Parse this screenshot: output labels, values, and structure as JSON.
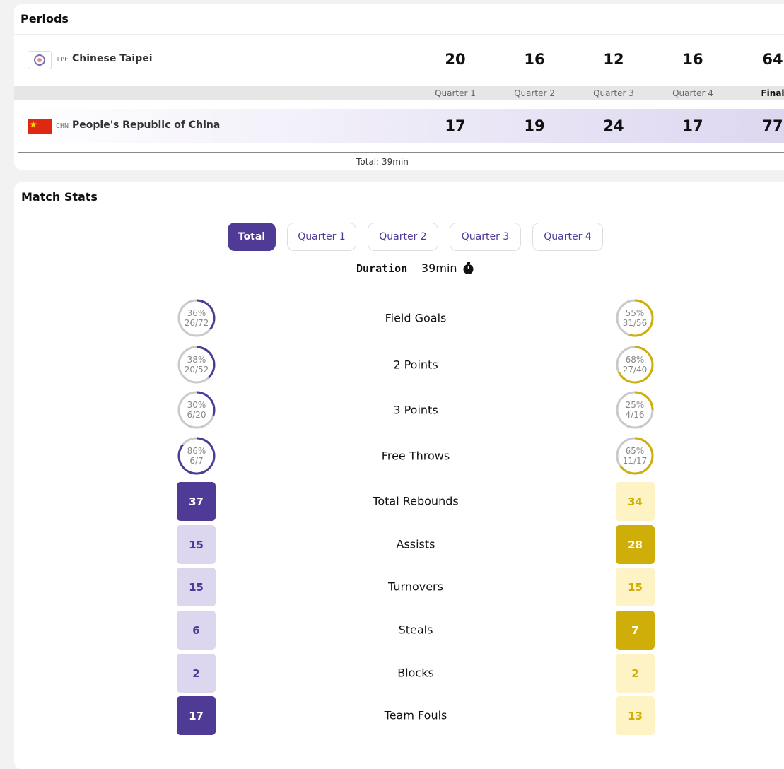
{
  "periods": {
    "title": "Periods",
    "teams": [
      {
        "code": "TPE",
        "name": "Chinese Taipei",
        "scores": [
          20,
          16,
          12,
          16,
          64
        ]
      },
      {
        "code": "CHN",
        "name": "People's Republic of China",
        "scores": [
          17,
          19,
          24,
          17,
          77
        ]
      }
    ],
    "columns": [
      "Quarter 1",
      "Quarter 2",
      "Quarter 3",
      "Quarter 4",
      "Final"
    ],
    "total": "Total: 39min"
  },
  "match_stats": {
    "title": "Match Stats",
    "tabs": [
      "Total",
      "Quarter 1",
      "Quarter 2",
      "Quarter 3",
      "Quarter 4"
    ],
    "duration_label": "Duration",
    "duration": "39min",
    "shooting": [
      {
        "label": "Field Goals",
        "left": {
          "value": 36,
          "label": "36%",
          "made": "26/72"
        },
        "right": {
          "value": 55,
          "label": "55%",
          "made": "31/56"
        }
      },
      {
        "label": "2 Points",
        "left": {
          "value": 38,
          "label": "38%",
          "made": "20/52"
        },
        "right": {
          "value": 68,
          "label": "68%",
          "made": "27/40"
        }
      },
      {
        "label": "3 Points",
        "left": {
          "value": 30,
          "label": "30%",
          "made": "6/20"
        },
        "right": {
          "value": 25,
          "label": "25%",
          "made": "4/16"
        }
      },
      {
        "label": "Free Throws",
        "left": {
          "value": 86,
          "label": "86%",
          "made": "6/7"
        },
        "right": {
          "value": 65,
          "label": "65%",
          "made": "11/17"
        }
      }
    ],
    "counts": [
      {
        "label": "Total Rebounds",
        "left": 37,
        "right": 34
      },
      {
        "label": "Assists",
        "left": 15,
        "right": 28
      },
      {
        "label": "Turnovers",
        "left": 15,
        "right": 15
      },
      {
        "label": "Steals",
        "left": 6,
        "right": 7
      },
      {
        "label": "Blocks",
        "left": 2,
        "right": 2
      },
      {
        "label": "Team Fouls",
        "left": 17,
        "right": 13
      }
    ]
  }
}
